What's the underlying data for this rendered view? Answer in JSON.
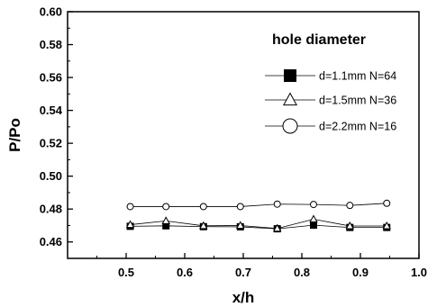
{
  "chart_data": {
    "type": "line",
    "title": "",
    "xlabel": "x/h",
    "ylabel": "P/Po",
    "xlim": [
      0.4,
      1.0
    ],
    "ylim": [
      0.45,
      0.6
    ],
    "x_ticks": [
      "0.5",
      "0.6",
      "0.7",
      "0.8",
      "0.9",
      "1.0"
    ],
    "y_ticks": [
      "0.46",
      "0.48",
      "0.50",
      "0.52",
      "0.54",
      "0.56",
      "0.58",
      "0.60"
    ],
    "legend_title": "hole diameter",
    "legend_position": "top-right",
    "grid": false,
    "x": [
      0.507,
      0.568,
      0.632,
      0.695,
      0.758,
      0.82,
      0.882,
      0.945
    ],
    "series": [
      {
        "name": "d=1.1mm N=64",
        "marker": "filled-square",
        "values": [
          0.4695,
          0.4698,
          0.4693,
          0.4692,
          0.468,
          0.4702,
          0.4688,
          0.4688
        ]
      },
      {
        "name": "d=1.5mm N=36",
        "marker": "triangle",
        "values": [
          0.4705,
          0.4728,
          0.4698,
          0.47,
          0.4682,
          0.4738,
          0.4697,
          0.4697
        ]
      },
      {
        "name": "d=2.2mm N=16",
        "marker": "circle",
        "values": [
          0.4815,
          0.4815,
          0.4815,
          0.4815,
          0.483,
          0.4828,
          0.4822,
          0.4835
        ]
      }
    ]
  }
}
